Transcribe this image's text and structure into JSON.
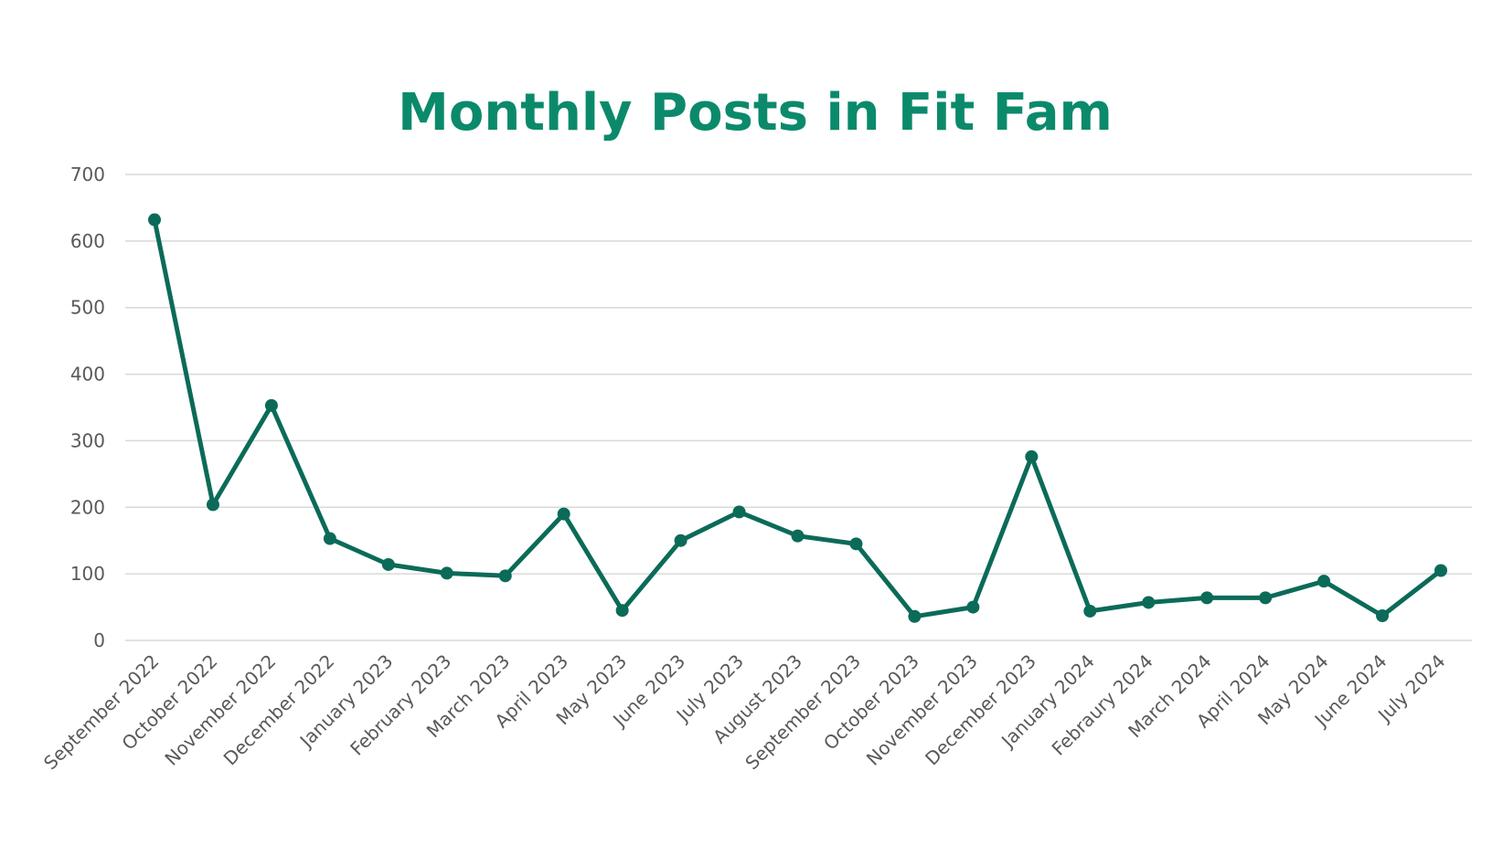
{
  "chart_data": {
    "type": "line",
    "title": "Monthly Posts in Fit Fam",
    "xlabel": "",
    "ylabel": "",
    "ylim": [
      0,
      700
    ],
    "yticks": [
      "0",
      "100",
      "200",
      "300",
      "400",
      "500",
      "600",
      "700"
    ],
    "grid": true,
    "legend": "none",
    "categories": [
      "September 2022",
      "October 2022",
      "November 2022",
      "December 2022",
      "January 2023",
      "February 2023",
      "March 2023",
      "April 2023",
      "May 2023",
      "June 2023",
      "July 2023",
      "August 2023",
      "September 2023",
      "October 2023",
      "November 2023",
      "December 2023",
      "January 2024",
      "Febraury 2024",
      "March 2024",
      "April 2024",
      "May 2024",
      "June 2024",
      "July 2024"
    ],
    "series": [
      {
        "values": [
          632,
          204,
          353,
          153,
          114,
          101,
          97,
          190,
          45,
          150,
          193,
          157,
          145,
          36,
          50,
          276,
          44,
          57,
          64,
          64,
          89,
          37,
          105
        ],
        "color": "#0b6b58"
      }
    ],
    "colors": {
      "title": "#0b8a6b",
      "line": "#0b6b58",
      "grid": "#d9d9d9",
      "tick_text": "#595959"
    }
  }
}
